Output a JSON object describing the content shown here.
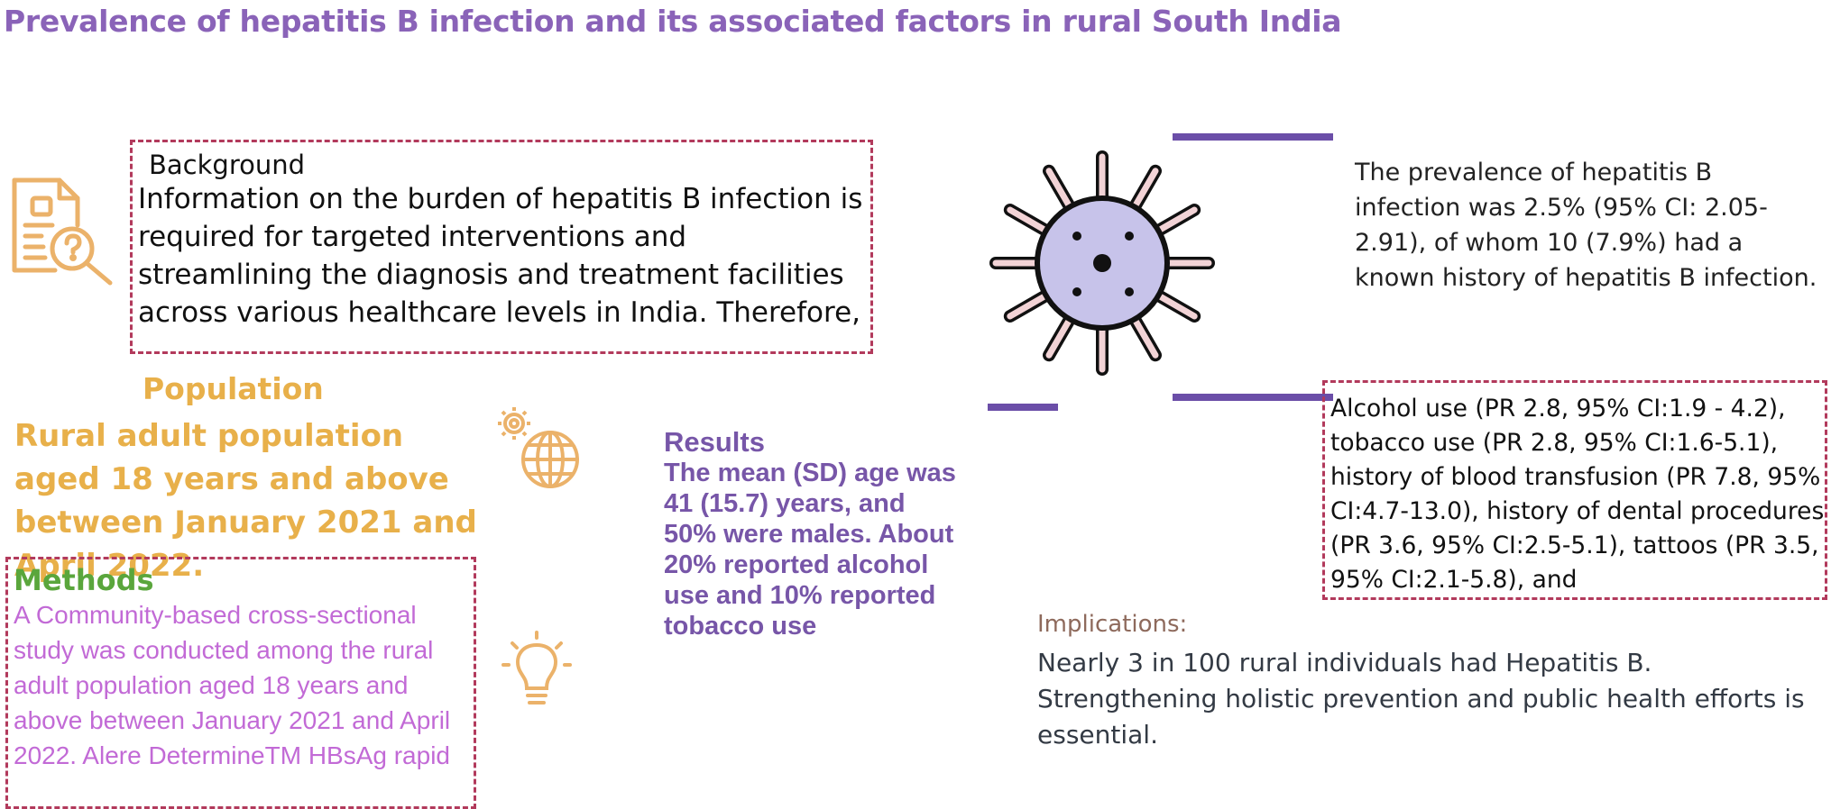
{
  "title": "Prevalence of hepatitis B infection and its associated factors in rural South India",
  "background": {
    "heading": "Background",
    "text": "Information on the burden of hepatitis B infection is required for targeted interventions and streamlining the diagnosis and treatment facilities across various healthcare levels in India. Therefore,"
  },
  "population": {
    "heading": "Population",
    "text": "Rural adult population aged 18 years and above between January 2021 and April 2022."
  },
  "methods": {
    "heading": "Methods",
    "text": "A Community-based cross-sectional study was conducted among the rural adult population aged 18 years and above between January 2021 and April 2022. Alere DetermineTM HBsAg rapid"
  },
  "results": {
    "heading": "Results",
    "text": "The mean (SD) age was 41 (15.7) years, and 50% were males. About 20% reported alcohol use and 10% reported tobacco use"
  },
  "prevalence": {
    "text": "The prevalence of hepatitis B infection was 2.5% (95% CI: 2.05-2.91), of whom 10 (7.9%) had a known history of hepatitis B infection."
  },
  "factors": {
    "text": "Alcohol use (PR 2.8, 95% CI:1.9 - 4.2), tobacco use (PR 2.8, 95% CI:1.6-5.1), history of blood transfusion (PR 7.8, 95% CI:4.7-13.0), history of dental procedures (PR 3.6, 95% CI:2.5-5.1), tattoos (PR 3.5, 95% CI:2.1-5.8), and"
  },
  "implications": {
    "heading": "Implications:",
    "text": "Nearly 3 in 100 rural individuals had Hepatitis B. Strengthening holistic prevention and public health efforts is essential."
  },
  "icons": {
    "document": "document-search-icon",
    "globe": "globe-gear-icon",
    "bulb": "lightbulb-icon",
    "virus": "virus-icon"
  },
  "colors": {
    "title": "#8a63b8",
    "accent_orange": "#e8b04a",
    "accent_purple": "#6b4ea8",
    "methods_green": "#5aa63c",
    "methods_text": "#c26ad6",
    "box_border": "#b23a5c"
  }
}
